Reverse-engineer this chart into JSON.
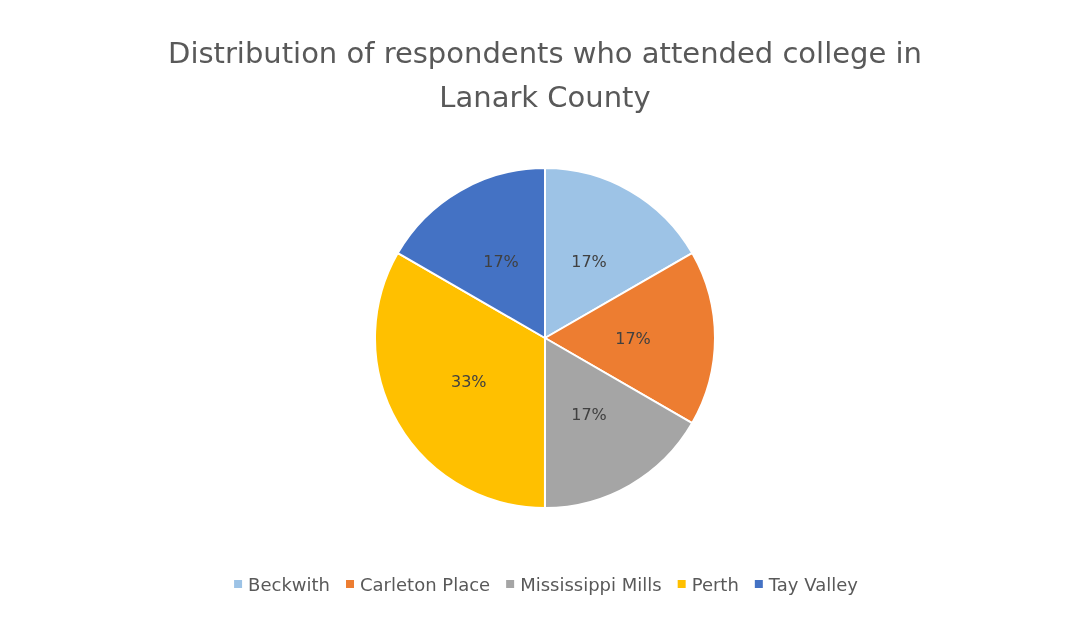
{
  "chart_data": {
    "type": "pie",
    "title": "Distribution of respondents who attended college in\nLanark County",
    "categories": [
      "Beckwith",
      "Carleton Place",
      "Mississippi Mills",
      "Perth",
      "Tay Valley"
    ],
    "values": [
      16.67,
      16.67,
      16.67,
      33.33,
      16.67
    ],
    "value_labels": [
      "17%",
      "17%",
      "17%",
      "33%",
      "17%"
    ],
    "colors": [
      "#9dc3e6",
      "#ed7d31",
      "#a5a5a5",
      "#ffc000",
      "#4472c4"
    ],
    "legend": "bottom"
  }
}
